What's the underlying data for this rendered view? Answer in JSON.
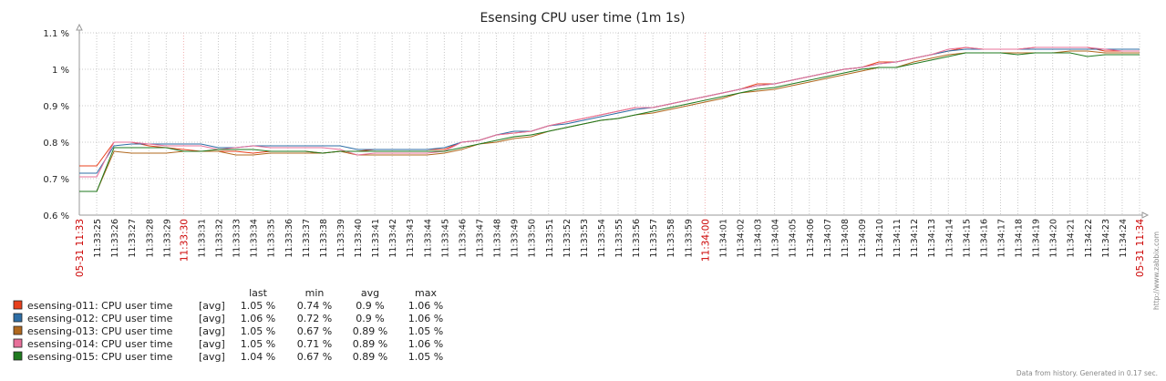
{
  "title": "Esensing CPU user time (1m 1s)",
  "footer": "Data from history. Generated in 0.17 sec.",
  "watermark": "http://www.zabbix.com",
  "legend_headers": {
    "last": "last",
    "min": "min",
    "avg": "avg",
    "max": "max"
  },
  "chart_data": {
    "type": "line",
    "title": "Esensing CPU user time (1m 1s)",
    "y_unit": "%",
    "ylim": [
      0.6,
      1.1
    ],
    "yticks": [
      "0.6 %",
      "0.7 %",
      "0.8 %",
      "0.9 %",
      "1 %",
      "1.1 %"
    ],
    "grid": true,
    "x_labels": [
      "05-31 11:33",
      "11:33:25",
      "11:33:26",
      "11:33:27",
      "11:33:28",
      "11:33:29",
      "11:33:30",
      "11:33:31",
      "11:33:32",
      "11:33:33",
      "11:33:34",
      "11:33:35",
      "11:33:36",
      "11:33:37",
      "11:33:38",
      "11:33:39",
      "11:33:40",
      "11:33:41",
      "11:33:42",
      "11:33:43",
      "11:33:44",
      "11:33:45",
      "11:33:46",
      "11:33:47",
      "11:33:48",
      "11:33:49",
      "11:33:50",
      "11:33:51",
      "11:33:52",
      "11:33:53",
      "11:33:54",
      "11:33:55",
      "11:33:56",
      "11:33:57",
      "11:33:58",
      "11:33:59",
      "11:34:00",
      "11:34:01",
      "11:34:02",
      "11:34:03",
      "11:34:04",
      "11:34:05",
      "11:34:06",
      "11:34:07",
      "11:34:08",
      "11:34:09",
      "11:34:10",
      "11:34:11",
      "11:34:12",
      "11:34:13",
      "11:34:14",
      "11:34:15",
      "11:34:16",
      "11:34:17",
      "11:34:18",
      "11:34:19",
      "11:34:20",
      "11:34:21",
      "11:34:22",
      "11:34:23",
      "11:34:24",
      "05-31 11:34"
    ],
    "x_labels_red": [
      "05-31 11:33",
      "11:33:30",
      "11:34:00",
      "05-31 11:34"
    ],
    "series": [
      {
        "name": "esensing-011: CPU user time",
        "agg": "[avg]",
        "color": "#e8401c",
        "last": "1.05 %",
        "min": "0.74 %",
        "avg": "0.9 %",
        "max": "1.06 %",
        "values": [
          0.735,
          0.735,
          0.8,
          0.8,
          0.79,
          0.785,
          0.78,
          0.775,
          0.775,
          0.775,
          0.77,
          0.775,
          0.775,
          0.775,
          0.77,
          0.775,
          0.775,
          0.78,
          0.78,
          0.78,
          0.78,
          0.78,
          0.8,
          0.805,
          0.82,
          0.825,
          0.83,
          0.845,
          0.855,
          0.865,
          0.875,
          0.885,
          0.895,
          0.895,
          0.905,
          0.915,
          0.925,
          0.935,
          0.945,
          0.96,
          0.96,
          0.97,
          0.98,
          0.99,
          1.0,
          1.005,
          1.02,
          1.02,
          1.03,
          1.04,
          1.05,
          1.06,
          1.055,
          1.055,
          1.055,
          1.06,
          1.06,
          1.06,
          1.06,
          1.05,
          1.05,
          1.05
        ]
      },
      {
        "name": "esensing-012: CPU user time",
        "agg": "[avg]",
        "color": "#2e6ea6",
        "last": "1.06 %",
        "min": "0.72 %",
        "avg": "0.9 %",
        "max": "1.06 %",
        "values": [
          0.715,
          0.715,
          0.79,
          0.795,
          0.795,
          0.795,
          0.795,
          0.795,
          0.785,
          0.785,
          0.79,
          0.79,
          0.79,
          0.79,
          0.79,
          0.79,
          0.78,
          0.78,
          0.78,
          0.78,
          0.78,
          0.785,
          0.8,
          0.805,
          0.82,
          0.83,
          0.83,
          0.845,
          0.85,
          0.86,
          0.87,
          0.88,
          0.89,
          0.895,
          0.905,
          0.915,
          0.925,
          0.935,
          0.945,
          0.955,
          0.96,
          0.97,
          0.98,
          0.99,
          1.0,
          1.005,
          1.015,
          1.02,
          1.03,
          1.04,
          1.05,
          1.055,
          1.055,
          1.055,
          1.055,
          1.055,
          1.055,
          1.055,
          1.055,
          1.055,
          1.055,
          1.055
        ]
      },
      {
        "name": "esensing-013: CPU user time",
        "agg": "[avg]",
        "color": "#b0681e",
        "last": "1.05 %",
        "min": "0.67 %",
        "avg": "0.89 %",
        "max": "1.05 %",
        "values": [
          0.665,
          0.665,
          0.775,
          0.77,
          0.77,
          0.77,
          0.775,
          0.775,
          0.775,
          0.765,
          0.765,
          0.77,
          0.77,
          0.77,
          0.77,
          0.775,
          0.765,
          0.765,
          0.765,
          0.765,
          0.765,
          0.77,
          0.78,
          0.795,
          0.8,
          0.81,
          0.815,
          0.83,
          0.84,
          0.85,
          0.86,
          0.865,
          0.875,
          0.88,
          0.89,
          0.9,
          0.91,
          0.92,
          0.935,
          0.94,
          0.945,
          0.955,
          0.965,
          0.975,
          0.985,
          0.995,
          1.005,
          1.005,
          1.02,
          1.03,
          1.04,
          1.045,
          1.045,
          1.045,
          1.045,
          1.045,
          1.045,
          1.05,
          1.05,
          1.045,
          1.045,
          1.045
        ]
      },
      {
        "name": "esensing-014: CPU user time",
        "agg": "[avg]",
        "color": "#e8709a",
        "last": "1.05 %",
        "min": "0.71 %",
        "avg": "0.89 %",
        "max": "1.06 %",
        "values": [
          0.705,
          0.705,
          0.8,
          0.8,
          0.795,
          0.79,
          0.79,
          0.79,
          0.78,
          0.785,
          0.79,
          0.785,
          0.785,
          0.785,
          0.785,
          0.78,
          0.765,
          0.77,
          0.77,
          0.77,
          0.77,
          0.775,
          0.8,
          0.805,
          0.82,
          0.825,
          0.83,
          0.845,
          0.855,
          0.865,
          0.875,
          0.885,
          0.895,
          0.895,
          0.905,
          0.915,
          0.925,
          0.935,
          0.945,
          0.955,
          0.96,
          0.97,
          0.98,
          0.99,
          1.0,
          1.005,
          1.015,
          1.02,
          1.03,
          1.04,
          1.055,
          1.06,
          1.055,
          1.055,
          1.055,
          1.06,
          1.06,
          1.06,
          1.06,
          1.055,
          1.05,
          1.05
        ]
      },
      {
        "name": "esensing-015: CPU user time",
        "agg": "[avg]",
        "color": "#1e7a1e",
        "last": "1.04 %",
        "min": "0.67 %",
        "avg": "0.89 %",
        "max": "1.05 %",
        "values": [
          0.665,
          0.665,
          0.785,
          0.785,
          0.785,
          0.785,
          0.775,
          0.775,
          0.78,
          0.78,
          0.78,
          0.775,
          0.775,
          0.775,
          0.77,
          0.775,
          0.775,
          0.775,
          0.775,
          0.775,
          0.775,
          0.775,
          0.785,
          0.795,
          0.805,
          0.815,
          0.82,
          0.83,
          0.84,
          0.85,
          0.86,
          0.865,
          0.875,
          0.885,
          0.895,
          0.905,
          0.915,
          0.925,
          0.935,
          0.945,
          0.95,
          0.96,
          0.97,
          0.98,
          0.99,
          1.0,
          1.005,
          1.005,
          1.015,
          1.025,
          1.035,
          1.045,
          1.045,
          1.045,
          1.04,
          1.045,
          1.045,
          1.045,
          1.035,
          1.04,
          1.04,
          1.04
        ]
      }
    ]
  }
}
